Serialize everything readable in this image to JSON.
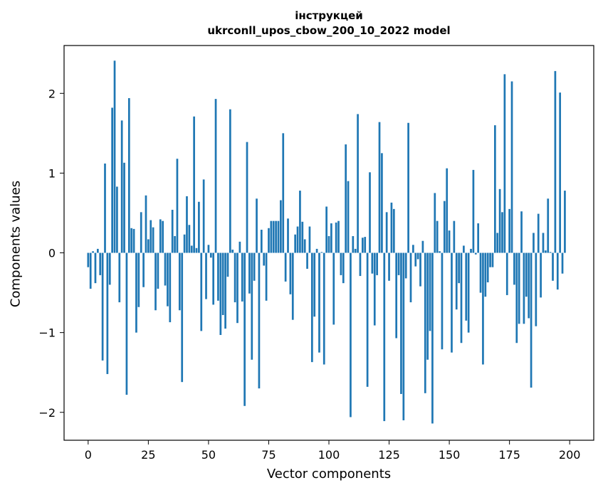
{
  "chart_data": {
    "type": "bar",
    "title_line1": "інструкцей",
    "title_line2": "ukrconll_upos_cbow_200_10_2022 model",
    "xlabel": "Vector components",
    "ylabel": "Components values",
    "xlim": [
      -10,
      210
    ],
    "ylim": [
      -2.35,
      2.6
    ],
    "xticks": [
      0,
      25,
      50,
      75,
      100,
      125,
      150,
      175,
      200
    ],
    "yticks": [
      -2,
      -1,
      0,
      1,
      2
    ],
    "ytick_labels": [
      "−2",
      "−1",
      "0",
      "1",
      "2"
    ],
    "bar_color": "#1f77b4",
    "values": [
      -0.18,
      -0.45,
      0.02,
      -0.38,
      0.05,
      -0.28,
      -1.35,
      1.12,
      -1.52,
      -0.4,
      1.82,
      2.41,
      0.83,
      -0.62,
      1.66,
      1.13,
      -1.78,
      1.94,
      0.31,
      0.3,
      -1.0,
      -0.68,
      0.51,
      -0.43,
      0.72,
      0.17,
      0.41,
      0.32,
      -0.72,
      -0.45,
      0.42,
      0.4,
      -0.41,
      -0.67,
      -0.87,
      0.54,
      0.21,
      1.18,
      -0.72,
      -1.62,
      0.23,
      0.71,
      0.35,
      0.09,
      1.71,
      0.06,
      0.64,
      -0.98,
      0.92,
      -0.58,
      0.1,
      -0.06,
      -0.65,
      1.93,
      -0.6,
      -1.03,
      -0.78,
      -0.95,
      -0.3,
      1.8,
      0.04,
      -0.62,
      -0.88,
      0.14,
      -0.61,
      -1.92,
      1.39,
      -0.51,
      -1.34,
      -0.35,
      0.68,
      -1.7,
      0.29,
      -0.16,
      -0.6,
      0.31,
      0.4,
      0.4,
      0.4,
      0.4,
      0.66,
      1.5,
      -0.36,
      0.43,
      -0.52,
      -0.84,
      0.23,
      0.33,
      0.78,
      0.39,
      0.17,
      -0.2,
      0.33,
      -1.37,
      -0.8,
      0.05,
      -1.25,
      0.01,
      -1.4,
      0.58,
      0.21,
      0.37,
      -0.9,
      0.38,
      0.4,
      -0.28,
      -0.38,
      1.36,
      0.9,
      -2.06,
      0.21,
      0.05,
      1.74,
      -0.29,
      0.19,
      0.2,
      -1.68,
      1.01,
      -0.26,
      -0.91,
      -0.28,
      1.64,
      1.25,
      -2.11,
      0.51,
      -0.35,
      0.63,
      0.55,
      -1.07,
      -0.28,
      -1.77,
      -2.1,
      -0.32,
      1.63,
      -0.62,
      0.1,
      -0.17,
      -0.08,
      -0.42,
      0.15,
      -1.76,
      -1.34,
      -0.98,
      -2.14,
      0.75,
      0.4,
      0.02,
      -1.21,
      0.65,
      1.06,
      0.28,
      -1.25,
      0.4,
      -0.71,
      -0.38,
      -1.13,
      0.09,
      -0.85,
      -1.0,
      0.05,
      1.04,
      -0.02,
      0.37,
      -0.5,
      -1.4,
      -0.55,
      -0.37,
      -0.18,
      -0.18,
      1.6,
      0.25,
      0.8,
      0.51,
      2.24,
      -0.53,
      0.55,
      2.15,
      -0.4,
      -1.13,
      -0.89,
      0.52,
      -0.89,
      -0.55,
      -0.82,
      -1.69,
      0.25,
      -0.92,
      0.49,
      -0.56,
      0.25,
      0.03,
      0.68,
      0.01,
      -0.35,
      2.28,
      -0.46,
      2.01,
      -0.26,
      0.78
    ]
  }
}
